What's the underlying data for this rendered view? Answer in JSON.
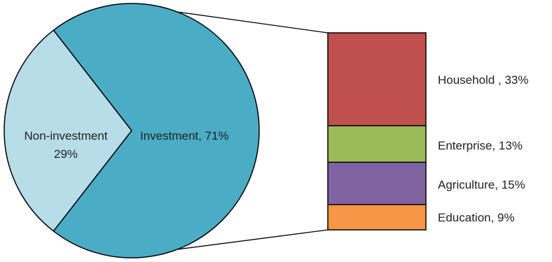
{
  "chart_data": {
    "type": "pie",
    "pie": {
      "slices": [
        {
          "label": "Non-investment",
          "label_line2": "29%",
          "value": 29,
          "color": "#b7dde8"
        },
        {
          "label": "Investment, 71%",
          "value": 71,
          "color": "#4bacc6"
        }
      ]
    },
    "bar": {
      "type": "stacked-bar",
      "segments": [
        {
          "label": "Household , 33%",
          "value": 33,
          "color": "#c0504d"
        },
        {
          "label": "Enterprise, 13%",
          "value": 13,
          "color": "#9bbb59"
        },
        {
          "label": "Agriculture, 15%",
          "value": 15,
          "color": "#8064a2"
        },
        {
          "label": "Education, 9%",
          "value": 9,
          "color": "#f79646"
        }
      ]
    }
  }
}
